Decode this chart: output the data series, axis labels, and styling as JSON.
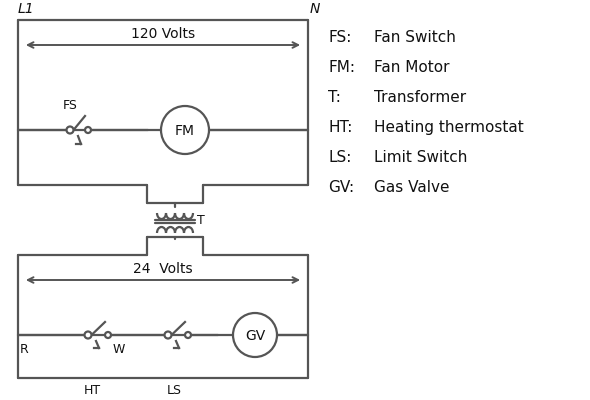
{
  "bg_color": "#ffffff",
  "line_color": "#555555",
  "text_color": "#111111",
  "L1_label": "L1",
  "N_label": "N",
  "v120_label": "120 Volts",
  "v24_label": "24  Volts",
  "T_label": "T",
  "legend": [
    [
      "FS:",
      "Fan Switch"
    ],
    [
      "FM:",
      "Fan Motor"
    ],
    [
      "T:",
      "Transformer"
    ],
    [
      "HT:",
      "Heating thermostat"
    ],
    [
      "LS:",
      "Limit Switch"
    ],
    [
      "GV:",
      "Gas Valve"
    ]
  ]
}
